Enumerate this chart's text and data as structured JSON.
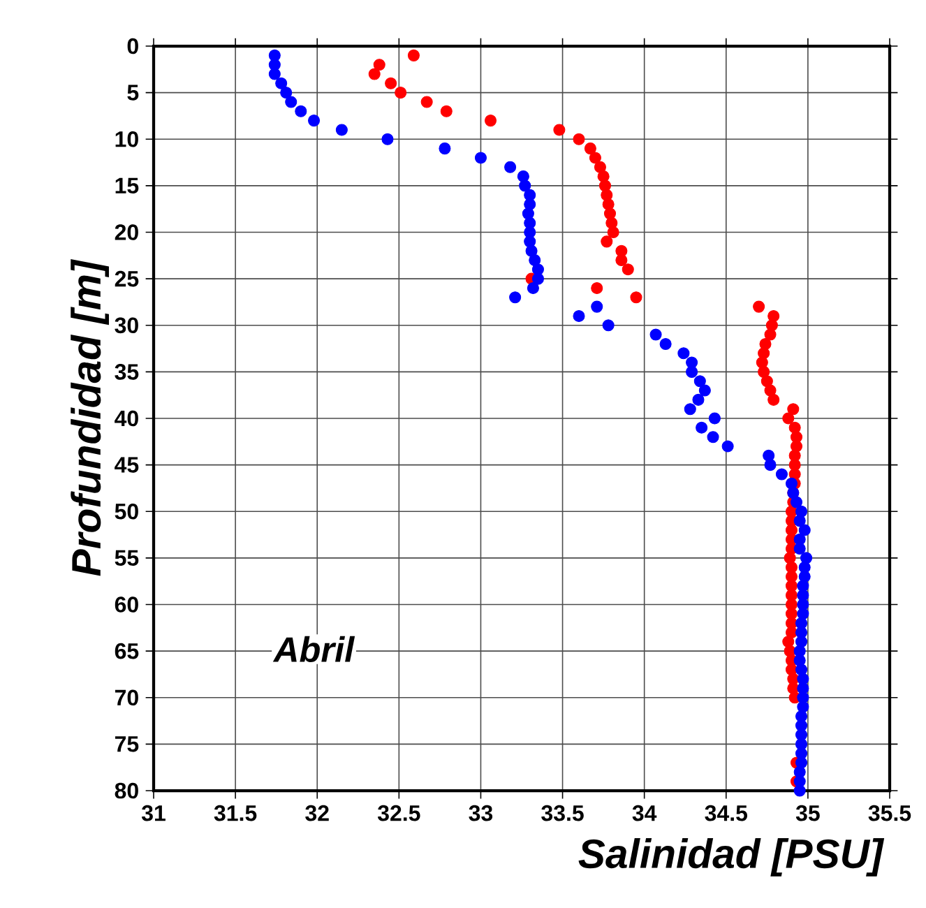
{
  "chart_data": {
    "type": "scatter",
    "xlabel": "Salinidad [PSU]",
    "ylabel": "Profundidad [m]",
    "annotations": [
      "Abril"
    ],
    "xlim": [
      31,
      35.5
    ],
    "xticks": [
      31,
      31.5,
      32,
      32.5,
      33,
      33.5,
      34,
      34.5,
      35,
      35.5
    ],
    "ylim": [
      80,
      0
    ],
    "yticks": [
      0,
      5,
      10,
      15,
      20,
      25,
      30,
      35,
      40,
      45,
      50,
      55,
      60,
      65,
      70,
      75,
      80
    ],
    "grid": true,
    "marker": "circle",
    "series": [
      {
        "color": "#ff0000",
        "x": [
          32.59,
          32.38,
          32.35,
          32.45,
          32.51,
          32.67,
          32.79,
          33.06,
          33.48,
          33.6,
          33.67,
          33.7,
          33.73,
          33.75,
          33.76,
          33.77,
          33.78,
          33.79,
          33.8,
          33.81,
          33.77,
          33.86,
          33.86,
          33.9,
          33.31,
          33.71,
          33.95,
          34.7,
          34.79,
          34.78,
          34.77,
          34.74,
          34.73,
          34.72,
          34.73,
          34.75,
          34.77,
          34.79,
          34.91,
          34.88,
          34.92,
          34.93,
          34.93,
          34.92,
          34.92,
          34.92,
          34.92,
          34.91,
          34.91,
          34.9,
          34.9,
          34.9,
          34.9,
          34.9,
          34.89,
          34.9,
          34.9,
          34.9,
          34.9,
          34.9,
          34.9,
          34.9,
          34.9,
          34.88,
          34.89,
          34.9,
          34.9,
          34.91,
          34.91,
          34.92,
          34.93,
          34.93
        ],
        "values": [
          1,
          2,
          3,
          4,
          5,
          6,
          7,
          8,
          9,
          10,
          11,
          12,
          13,
          14,
          15,
          16,
          17,
          18,
          19,
          20,
          21,
          22,
          23,
          24,
          25,
          26,
          27,
          28,
          29,
          30,
          31,
          32,
          33,
          34,
          35,
          36,
          37,
          38,
          39,
          40,
          41,
          42,
          43,
          44,
          45,
          46,
          47,
          48,
          49,
          50,
          51,
          52,
          53,
          54,
          55,
          56,
          57,
          58,
          59,
          60,
          61,
          62,
          63,
          64,
          65,
          66,
          67,
          68,
          69,
          70,
          77,
          79
        ]
      },
      {
        "color": "#0000ff",
        "x": [
          31.74,
          31.74,
          31.74,
          31.78,
          31.81,
          31.84,
          31.9,
          31.98,
          32.15,
          32.43,
          32.78,
          33.0,
          33.18,
          33.26,
          33.27,
          33.3,
          33.3,
          33.29,
          33.3,
          33.3,
          33.3,
          33.31,
          33.33,
          33.35,
          33.35,
          33.32,
          33.21,
          33.71,
          33.6,
          33.78,
          34.07,
          34.13,
          34.24,
          34.29,
          34.29,
          34.34,
          34.37,
          34.33,
          34.28,
          34.43,
          34.35,
          34.42,
          34.51,
          34.76,
          34.77,
          34.84,
          34.9,
          34.91,
          34.93,
          34.96,
          34.95,
          34.98,
          34.95,
          34.95,
          34.99,
          34.98,
          34.98,
          34.97,
          34.97,
          34.97,
          34.97,
          34.96,
          34.96,
          34.96,
          34.95,
          34.95,
          34.96,
          34.97,
          34.97,
          34.97,
          34.97,
          34.96,
          34.96,
          34.96,
          34.96,
          34.96,
          34.96,
          34.95,
          34.95,
          34.95
        ],
        "values": [
          1,
          2,
          3,
          4,
          5,
          6,
          7,
          8,
          9,
          10,
          11,
          12,
          13,
          14,
          15,
          16,
          17,
          18,
          19,
          20,
          21,
          22,
          23,
          24,
          25,
          26,
          27,
          28,
          29,
          30,
          31,
          32,
          33,
          34,
          35,
          36,
          37,
          38,
          39,
          40,
          41,
          42,
          43,
          44,
          45,
          46,
          47,
          48,
          49,
          50,
          51,
          52,
          53,
          54,
          55,
          56,
          57,
          58,
          59,
          60,
          61,
          62,
          63,
          64,
          65,
          66,
          67,
          68,
          69,
          70,
          71,
          72,
          73,
          74,
          75,
          76,
          77,
          78,
          79,
          80
        ]
      }
    ]
  }
}
